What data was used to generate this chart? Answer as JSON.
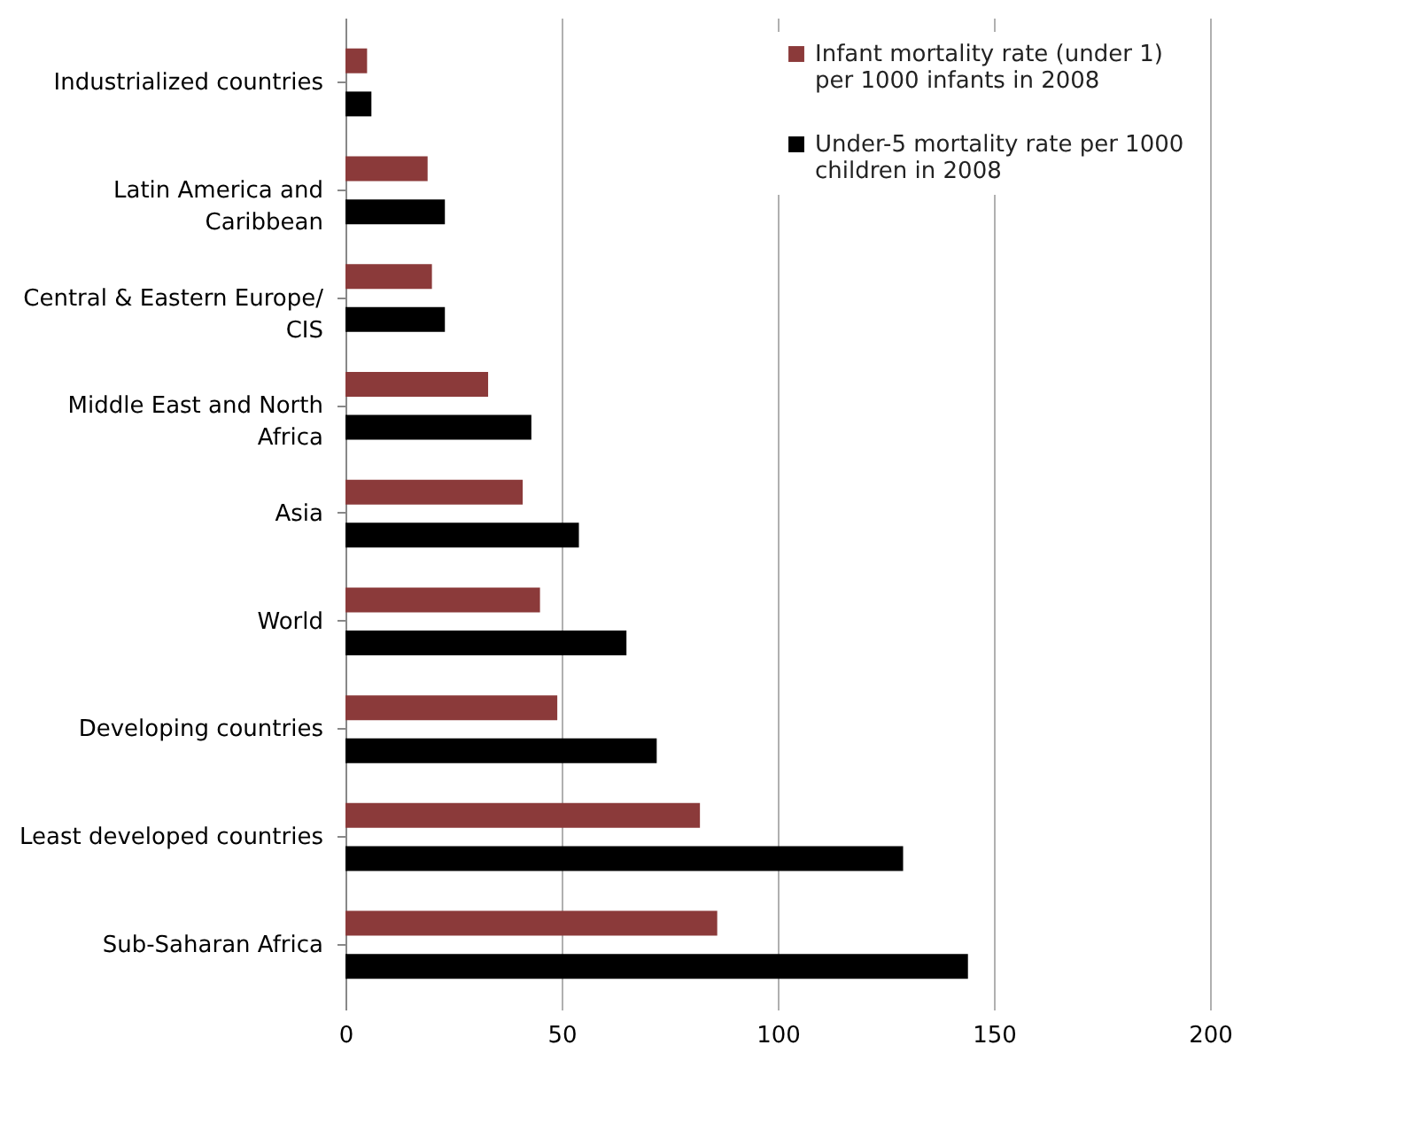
{
  "chart_data": {
    "type": "bar",
    "orientation": "horizontal",
    "categories": [
      "Industrialized countries",
      "Latin America and Caribbean",
      "Central & Eastern Europe/ CIS",
      "Middle East and North Africa",
      "Asia",
      "World",
      "Developing countries",
      "Least developed countries",
      "Sub-Saharan Africa"
    ],
    "series": [
      {
        "name": "Infant mortality rate (under 1) per 1000 infants in 2008",
        "color": "#8b3a3a",
        "values": [
          5,
          19,
          20,
          33,
          41,
          45,
          49,
          82,
          86
        ]
      },
      {
        "name": "Under-5 mortality rate per 1000 children in 2008",
        "color": "#000000",
        "values": [
          6,
          23,
          23,
          43,
          54,
          65,
          72,
          129,
          144
        ]
      }
    ],
    "xlim": [
      0,
      200
    ],
    "xticks": [
      0,
      50,
      100,
      150,
      200
    ],
    "grid": "x",
    "legend": "top right"
  }
}
